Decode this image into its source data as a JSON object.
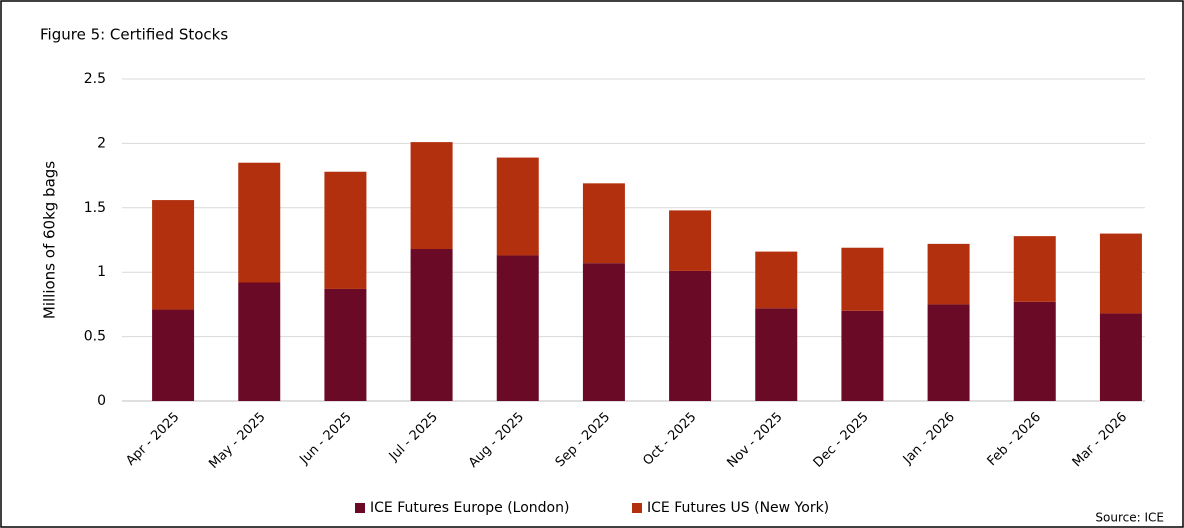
{
  "chart_data": {
    "type": "stacked_bar",
    "title": "Figure 5: Certified Stocks",
    "y_label": "Millions of 60kg bags",
    "source": "Source: ICE",
    "categories": [
      "Apr - 2025",
      "May - 2025",
      "Jun - 2025",
      "Jul - 2025",
      "Aug - 2025",
      "Sep - 2025",
      "Oct - 2025",
      "Nov - 2025",
      "Dec - 2025",
      "Jan - 2026",
      "Feb - 2026",
      "Mar - 2026"
    ],
    "series": [
      {
        "name": "ICE Futures Europe (London)",
        "color": "#6b0a26",
        "values": [
          0.71,
          0.92,
          0.87,
          1.18,
          1.13,
          1.07,
          1.01,
          0.72,
          0.7,
          0.75,
          0.77,
          0.68
        ]
      },
      {
        "name": "ICE Futures US (New York)",
        "color": "#b3300e",
        "values": [
          0.85,
          0.93,
          0.91,
          0.83,
          0.76,
          0.62,
          0.47,
          0.44,
          0.49,
          0.47,
          0.51,
          0.62
        ]
      }
    ],
    "ylim": [
      0,
      2.5
    ],
    "yticks": [
      0,
      0.5,
      1,
      1.5,
      2,
      2.5
    ],
    "grid": true,
    "legend": "bottom"
  }
}
